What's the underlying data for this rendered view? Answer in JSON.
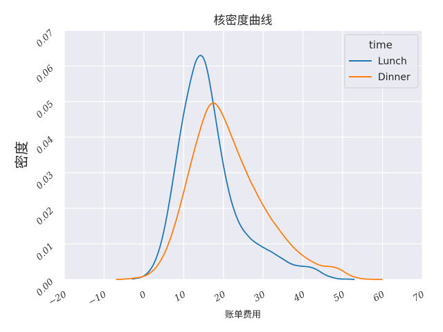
{
  "chart_data": {
    "type": "line",
    "title": "核密度曲线",
    "xlabel": "账单费用",
    "ylabel": "密度",
    "xlim": [
      -20,
      70
    ],
    "ylim": [
      0,
      0.07
    ],
    "xticks": [
      "−20",
      "−10",
      "0",
      "10",
      "20",
      "30",
      "40",
      "50",
      "60",
      "70"
    ],
    "yticks": [
      "0.00",
      "0.01",
      "0.02",
      "0.03",
      "0.04",
      "0.05",
      "0.06",
      "0.07"
    ],
    "grid": true,
    "legend": {
      "title": "time",
      "position": "top-right"
    },
    "series": [
      {
        "name": "Lunch",
        "color": "#1f77b4",
        "x": [
          -3,
          -1,
          0,
          1,
          2,
          3,
          4,
          5,
          6,
          7,
          8,
          9,
          10,
          11,
          12,
          13,
          14,
          15,
          16,
          17,
          18,
          19,
          20,
          21,
          22,
          23,
          24,
          25,
          26,
          27,
          28,
          29,
          30,
          31,
          32,
          33,
          34,
          35,
          36,
          37,
          38,
          39,
          40,
          41,
          42,
          43,
          44,
          45,
          46,
          47,
          48,
          49,
          50,
          51,
          52,
          53
        ],
        "y": [
          0.0001,
          0.0005,
          0.001,
          0.0019,
          0.0034,
          0.0057,
          0.009,
          0.0135,
          0.0192,
          0.0258,
          0.0329,
          0.04,
          0.0465,
          0.0521,
          0.0571,
          0.0611,
          0.0629,
          0.0622,
          0.0585,
          0.0524,
          0.0456,
          0.0386,
          0.0321,
          0.0266,
          0.022,
          0.0185,
          0.0158,
          0.0139,
          0.0125,
          0.0113,
          0.0104,
          0.0097,
          0.009,
          0.0084,
          0.0078,
          0.0071,
          0.0064,
          0.0057,
          0.005,
          0.0044,
          0.004,
          0.0038,
          0.0037,
          0.0036,
          0.0034,
          0.003,
          0.0024,
          0.0017,
          0.0011,
          0.0007,
          0.0004,
          0.0002,
          0.0001,
          0.0001,
          5e-05,
          0
        ]
      },
      {
        "name": "Dinner",
        "color": "#ff7f0e",
        "x": [
          -7,
          -5,
          -3,
          -1,
          0,
          1,
          2,
          3,
          4,
          5,
          6,
          7,
          8,
          9,
          10,
          11,
          12,
          13,
          14,
          15,
          16,
          17,
          18,
          19,
          20,
          21,
          22,
          23,
          24,
          25,
          26,
          27,
          28,
          29,
          30,
          31,
          32,
          33,
          34,
          35,
          36,
          37,
          38,
          39,
          40,
          41,
          42,
          43,
          44,
          45,
          46,
          47,
          48,
          49,
          50,
          51,
          52,
          53,
          54,
          55,
          56,
          58,
          60
        ],
        "y": [
          0,
          0.0001,
          0.0003,
          0.0006,
          0.0009,
          0.0014,
          0.0022,
          0.0033,
          0.0049,
          0.0069,
          0.0095,
          0.0126,
          0.0162,
          0.0202,
          0.0245,
          0.029,
          0.0334,
          0.0376,
          0.0415,
          0.0451,
          0.048,
          0.0494,
          0.0494,
          0.048,
          0.0458,
          0.0432,
          0.0404,
          0.0376,
          0.0348,
          0.0322,
          0.0296,
          0.0272,
          0.025,
          0.0228,
          0.0208,
          0.0189,
          0.0171,
          0.0155,
          0.014,
          0.0125,
          0.0111,
          0.0098,
          0.0086,
          0.0076,
          0.0067,
          0.0059,
          0.0052,
          0.0046,
          0.0041,
          0.0038,
          0.0037,
          0.0036,
          0.0034,
          0.003,
          0.0024,
          0.0017,
          0.0011,
          0.0007,
          0.0004,
          0.0002,
          0.0001,
          3e-05,
          0
        ]
      }
    ]
  }
}
